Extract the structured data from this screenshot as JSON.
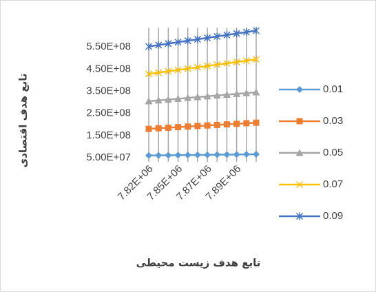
{
  "chart_data": {
    "type": "line",
    "x_label": "تابع هدف زیست محیطی",
    "y_label": "تابع هدف اقتصادی",
    "categories": [
      "7.82E+06",
      null,
      null,
      "7.85E+06",
      null,
      null,
      "7.87E+06",
      null,
      null,
      "7.89E+06",
      null,
      null
    ],
    "series": [
      {
        "name": "0.01",
        "color": "#5b9bd5",
        "marker": "diamond",
        "values": [
          60000000,
          60500000,
          61000000,
          61500000,
          62000000,
          62500000,
          63000000,
          63500000,
          64000000,
          64500000,
          65000000,
          65500000
        ]
      },
      {
        "name": "0.03",
        "color": "#ed7d31",
        "marker": "square",
        "values": [
          180000000,
          183000000,
          185500000,
          188000000,
          190500000,
          193000000,
          195500000,
          198000000,
          200500000,
          203000000,
          205500000,
          208000000
        ]
      },
      {
        "name": "0.05",
        "color": "#a5a5a5",
        "marker": "triangle",
        "values": [
          305000000,
          309000000,
          312500000,
          316000000,
          320000000,
          323500000,
          327000000,
          331000000,
          334500000,
          338000000,
          342000000,
          345500000
        ]
      },
      {
        "name": "0.07",
        "color": "#ffc000",
        "marker": "x",
        "values": [
          428000000,
          434000000,
          440000000,
          446000000,
          452000000,
          458000000,
          464000000,
          470000000,
          476000000,
          482000000,
          488000000,
          494000000
        ]
      },
      {
        "name": "0.09",
        "color": "#4472c4",
        "marker": "star",
        "values": [
          552000000,
          558500000,
          565000000,
          571500000,
          578000000,
          584500000,
          591000000,
          597500000,
          604000000,
          610500000,
          617000000,
          623500000
        ]
      }
    ],
    "ylim": [
      50000000,
      650000000
    ],
    "yticks": [
      {
        "value": 50000000,
        "label": "5.00E+07"
      },
      {
        "value": 150000000,
        "label": "1.50E+08"
      },
      {
        "value": 250000000,
        "label": "2.50E+08"
      },
      {
        "value": 350000000,
        "label": "3.50E+08"
      },
      {
        "value": 450000000,
        "label": "4.50E+08"
      },
      {
        "value": 550000000,
        "label": "5.50E+08"
      }
    ],
    "grid": true,
    "legend": "right"
  }
}
